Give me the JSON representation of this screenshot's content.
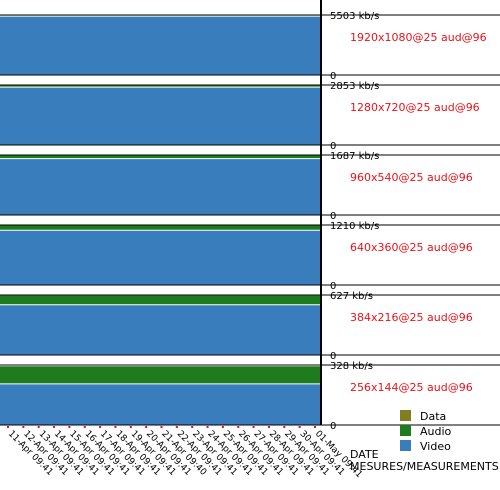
{
  "chart_data": {
    "type": "area",
    "stacking": "stacked",
    "colors": {
      "Data": "#808020",
      "Audio": "#1e7c1e",
      "Video": "#3a7dbd"
    },
    "legend": {
      "position": "bottom-right",
      "items": [
        "Data",
        "Audio",
        "Video"
      ]
    },
    "xlabel": "DATE",
    "xlabel2": "MESURES/MEASUREMENTS",
    "x": [
      "11-Apr 09:41",
      "12-Apr 09:41",
      "13-Apr 09:41",
      "14-Apr 09:41",
      "15-Apr 09:41",
      "16-Apr 09:41",
      "17-Apr 09:41",
      "18-Apr 09:41",
      "19-Apr 09:41",
      "20-Apr 09:41",
      "21-Apr 09:40",
      "22-Apr 09:41",
      "23-Apr 09:41",
      "24-Apr 09:41",
      "25-Apr 09:41",
      "26-Apr 09:41",
      "27-Apr 09:41",
      "28-Apr 09:41",
      "29-Apr 09:41",
      "30-Apr 09:41",
      "01-May 09:41"
    ],
    "panels": [
      {
        "label": "1920x1080@25 aud@96",
        "ymax_label": "5503 kb/s",
        "ymin_label": "0",
        "ymax": 5503,
        "video": 5400,
        "audio": 96,
        "data": 0
      },
      {
        "label": "1280x720@25 aud@96",
        "ymax_label": "2853 kb/s",
        "ymin_label": "0",
        "ymax": 2853,
        "video": 2750,
        "audio": 96,
        "data": 0
      },
      {
        "label": "960x540@25 aud@96",
        "ymax_label": "1687 kb/s",
        "ymin_label": "0",
        "ymax": 1687,
        "video": 1585,
        "audio": 96,
        "data": 0
      },
      {
        "label": "640x360@25 aud@96",
        "ymax_label": "1210 kb/s",
        "ymin_label": "0",
        "ymax": 1210,
        "video": 1105,
        "audio": 96,
        "data": 0
      },
      {
        "label": "384x216@25 aud@96",
        "ymax_label": "627 kb/s",
        "ymin_label": "0",
        "ymax": 627,
        "video": 525,
        "audio": 96,
        "data": 0
      },
      {
        "label": "256x144@25 aud@96",
        "ymax_label": "328 kb/s",
        "ymin_label": "",
        "ymax": 328,
        "video": 225,
        "audio": 96,
        "data": 0
      }
    ]
  }
}
